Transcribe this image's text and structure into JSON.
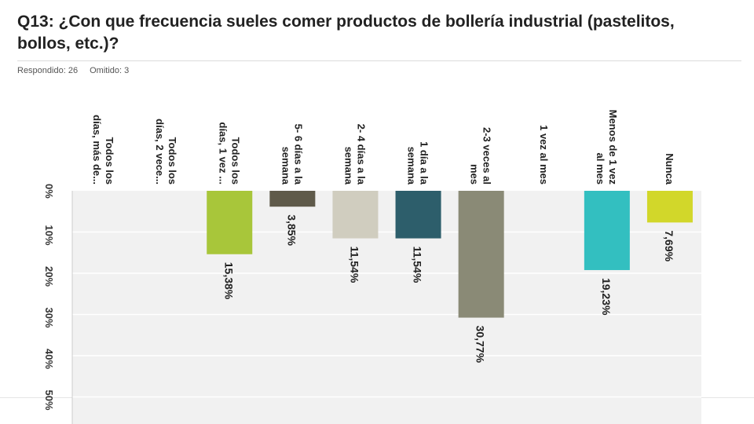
{
  "title": "Q13: ¿Con que frecuencia sueles comer productos de bollería industrial (pastelitos, bollos, etc.)?",
  "meta": {
    "answered": "Respondido: 26",
    "skipped": "Omitido: 3"
  },
  "chart_data": {
    "type": "bar",
    "orientation": "vertical-rotated",
    "categories": [
      [
        "Todos los",
        "días, más de..."
      ],
      [
        "Todos los",
        "días, 2 vece..."
      ],
      [
        "Todos los",
        "días, 1 vez ..."
      ],
      [
        "5- 6 días a la",
        "semana"
      ],
      [
        "2- 4 días a la",
        "semana"
      ],
      [
        "1 día a la",
        "semana"
      ],
      [
        "2-3 veces al",
        "mes"
      ],
      [
        "1 vez al mes"
      ],
      [
        "Menos de 1 vez",
        "al mes"
      ],
      [
        "Nunca"
      ]
    ],
    "values": [
      0,
      0,
      15.38,
      3.85,
      11.54,
      11.54,
      30.77,
      0,
      19.23,
      7.69
    ],
    "labels": [
      "",
      "",
      "15,38%",
      "3,85%",
      "11,54%",
      "11,54%",
      "30,77%",
      "",
      "19,23%",
      "7,69%"
    ],
    "colors": [
      "#a8c63a",
      "#a8c63a",
      "#a8c63a",
      "#5f5a4a",
      "#d0cdbf",
      "#2d5e6b",
      "#8a8a76",
      "#8a8a76",
      "#33bfc0",
      "#d2d72a"
    ],
    "ticks": [
      "0%",
      "10%",
      "20%",
      "30%",
      "40%",
      "50%"
    ],
    "ylim": [
      0,
      55
    ],
    "grid": true
  }
}
